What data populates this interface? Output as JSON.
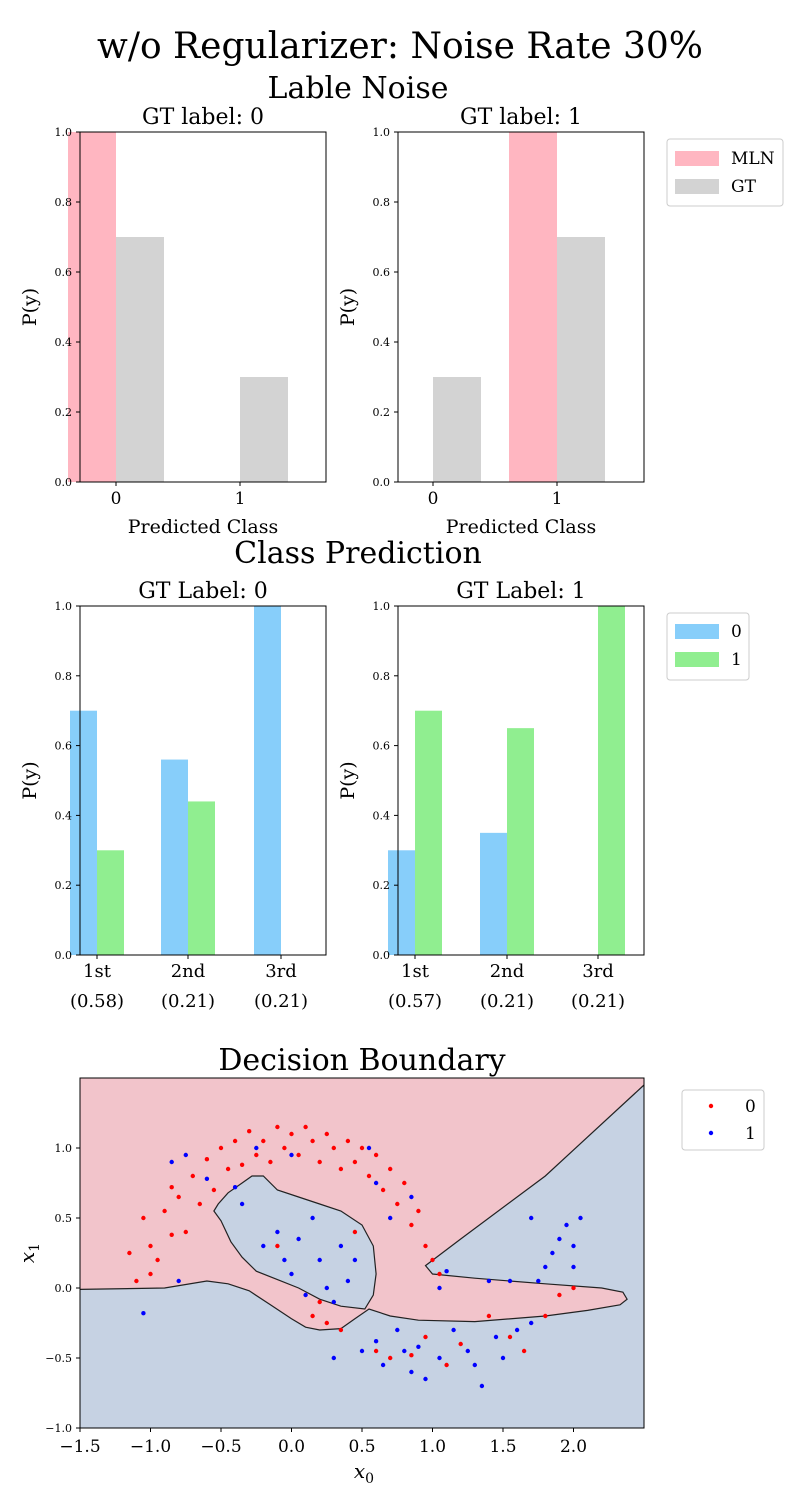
{
  "title": "w/o Regularizer: Noise Rate 30%",
  "sections": {
    "label_noise": "Lable Noise",
    "class_prediction": "Class Prediction",
    "decision_boundary": "Decision Boundary"
  },
  "colors": {
    "mln": "#ffb6c1",
    "gt": "#d3d3d3",
    "class0": "#87cefa",
    "class1": "#90ee90",
    "region0": "#f2c4cb",
    "region1": "#c6d2e3",
    "point0": "#ff0000",
    "point1": "#0000ff"
  },
  "chart_data": [
    {
      "type": "bar",
      "id": "noise0",
      "title": "GT label: 0",
      "xlabel": "Predicted Class",
      "ylabel": "P(y)",
      "categories": [
        "0",
        "1"
      ],
      "ylim": [
        0,
        1.0
      ],
      "yticks": [
        "0.0",
        "0.2",
        "0.4",
        "0.6",
        "0.8",
        "1.0"
      ],
      "series": [
        {
          "name": "MLN",
          "color": "mln",
          "values": [
            1.0,
            0.0
          ]
        },
        {
          "name": "GT",
          "color": "gt",
          "values": [
            0.7,
            0.3
          ]
        }
      ]
    },
    {
      "type": "bar",
      "id": "noise1",
      "title": "GT label: 1",
      "xlabel": "Predicted Class",
      "ylabel": "P(y)",
      "categories": [
        "0",
        "1"
      ],
      "ylim": [
        0,
        1.0
      ],
      "yticks": [
        "0.0",
        "0.2",
        "0.4",
        "0.6",
        "0.8",
        "1.0"
      ],
      "series": [
        {
          "name": "MLN",
          "color": "mln",
          "values": [
            0.0,
            1.0
          ]
        },
        {
          "name": "GT",
          "color": "gt",
          "values": [
            0.3,
            0.7
          ]
        }
      ]
    },
    {
      "type": "bar",
      "id": "pred0",
      "title": "GT Label: 0",
      "ylabel": "P(y)",
      "categories": [
        "1st",
        "2nd",
        "3rd"
      ],
      "category_weights": [
        "(0.58)",
        "(0.21)",
        "(0.21)"
      ],
      "ylim": [
        0,
        1.0
      ],
      "yticks": [
        "0.0",
        "0.2",
        "0.4",
        "0.6",
        "0.8",
        "1.0"
      ],
      "series": [
        {
          "name": "0",
          "color": "class0",
          "values": [
            0.7,
            0.56,
            1.0
          ]
        },
        {
          "name": "1",
          "color": "class1",
          "values": [
            0.3,
            0.44,
            0.0
          ]
        }
      ]
    },
    {
      "type": "bar",
      "id": "pred1",
      "title": "GT Label: 1",
      "ylabel": "P(y)",
      "categories": [
        "1st",
        "2nd",
        "3rd"
      ],
      "category_weights": [
        "(0.57)",
        "(0.21)",
        "(0.21)"
      ],
      "ylim": [
        0,
        1.0
      ],
      "yticks": [
        "0.0",
        "0.2",
        "0.4",
        "0.6",
        "0.8",
        "1.0"
      ],
      "series": [
        {
          "name": "0",
          "color": "class0",
          "values": [
            0.3,
            0.35,
            0.0
          ]
        },
        {
          "name": "1",
          "color": "class1",
          "values": [
            0.7,
            0.65,
            1.0
          ]
        }
      ]
    },
    {
      "type": "scatter",
      "id": "boundary",
      "title": "Decision Boundary",
      "xlabel": "x0",
      "ylabel": "x1",
      "xlim": [
        -1.5,
        2.5
      ],
      "ylim": [
        -1.0,
        1.5
      ],
      "xticks": [
        -1.5,
        -1.0,
        -0.5,
        0.0,
        0.5,
        1.0,
        1.5,
        2.0
      ],
      "xtick_labels": [
        "−1.5",
        "−1.0",
        "−0.5",
        "0.0",
        "0.5",
        "1.0",
        "1.5",
        "2.0"
      ],
      "yticks": [
        -1.0,
        -0.5,
        0.0,
        0.5,
        1.0
      ],
      "ytick_labels": [
        "−1.0",
        "−0.5",
        "0.0",
        "0.5",
        "1.0"
      ],
      "legend": [
        "0",
        "1"
      ],
      "boundary_outer": [
        [
          -1.5,
          -0.01
        ],
        [
          -0.9,
          0.0
        ],
        [
          -0.6,
          0.05
        ],
        [
          -0.45,
          0.03
        ],
        [
          -0.3,
          -0.02
        ],
        [
          -0.15,
          -0.12
        ],
        [
          0.0,
          -0.22
        ],
        [
          0.1,
          -0.28
        ],
        [
          0.2,
          -0.3
        ],
        [
          0.35,
          -0.29
        ],
        [
          0.45,
          -0.22
        ],
        [
          0.55,
          -0.15
        ],
        [
          0.7,
          -0.2
        ],
        [
          0.9,
          -0.23
        ],
        [
          1.3,
          -0.24
        ],
        [
          1.8,
          -0.2
        ],
        [
          2.1,
          -0.16
        ],
        [
          2.33,
          -0.12
        ],
        [
          2.38,
          -0.08
        ],
        [
          2.35,
          -0.03
        ],
        [
          2.2,
          0.0
        ],
        [
          1.8,
          0.03
        ],
        [
          1.3,
          0.07
        ],
        [
          1.0,
          0.1
        ],
        [
          0.95,
          0.16
        ],
        [
          1.2,
          0.35
        ],
        [
          1.8,
          0.8
        ],
        [
          2.5,
          1.45
        ]
      ],
      "boundary_inner": [
        [
          -0.55,
          0.55
        ],
        [
          -0.5,
          0.48
        ],
        [
          -0.43,
          0.33
        ],
        [
          -0.35,
          0.22
        ],
        [
          -0.25,
          0.12
        ],
        [
          -0.1,
          0.06
        ],
        [
          0.05,
          0.0
        ],
        [
          0.2,
          -0.08
        ],
        [
          0.35,
          -0.13
        ],
        [
          0.52,
          -0.15
        ],
        [
          0.58,
          -0.05
        ],
        [
          0.6,
          0.1
        ],
        [
          0.58,
          0.3
        ],
        [
          0.5,
          0.45
        ],
        [
          0.35,
          0.55
        ],
        [
          0.2,
          0.6
        ],
        [
          0.05,
          0.65
        ],
        [
          -0.1,
          0.7
        ],
        [
          -0.2,
          0.8
        ],
        [
          -0.28,
          0.8
        ],
        [
          -0.35,
          0.75
        ],
        [
          -0.45,
          0.68
        ],
        [
          -0.52,
          0.6
        ],
        [
          -0.55,
          0.55
        ]
      ],
      "series": [
        {
          "name": "0",
          "color": "point0",
          "points": [
            [
              -1.15,
              0.25
            ],
            [
              -1.1,
              0.05
            ],
            [
              -1.05,
              0.5
            ],
            [
              -1.0,
              0.3
            ],
            [
              -0.95,
              0.2
            ],
            [
              -0.9,
              0.55
            ],
            [
              -0.85,
              0.38
            ],
            [
              -0.8,
              0.65
            ],
            [
              -0.75,
              0.4
            ],
            [
              -0.7,
              0.8
            ],
            [
              -0.65,
              0.6
            ],
            [
              -0.6,
              0.92
            ],
            [
              -0.55,
              0.7
            ],
            [
              -0.5,
              1.0
            ],
            [
              -0.45,
              0.85
            ],
            [
              -0.4,
              1.05
            ],
            [
              -0.35,
              0.88
            ],
            [
              -0.3,
              1.12
            ],
            [
              -0.25,
              0.95
            ],
            [
              -0.2,
              1.05
            ],
            [
              -0.15,
              0.9
            ],
            [
              -0.1,
              1.15
            ],
            [
              -0.05,
              1.0
            ],
            [
              0.0,
              1.1
            ],
            [
              0.05,
              0.95
            ],
            [
              0.1,
              1.15
            ],
            [
              0.15,
              1.05
            ],
            [
              0.2,
              0.9
            ],
            [
              0.25,
              1.1
            ],
            [
              0.3,
              1.0
            ],
            [
              0.35,
              0.85
            ],
            [
              0.4,
              1.05
            ],
            [
              0.45,
              0.9
            ],
            [
              0.5,
              1.0
            ],
            [
              0.55,
              0.8
            ],
            [
              0.6,
              0.95
            ],
            [
              0.65,
              0.7
            ],
            [
              0.7,
              0.85
            ],
            [
              0.75,
              0.6
            ],
            [
              0.8,
              0.75
            ],
            [
              0.85,
              0.45
            ],
            [
              0.9,
              0.55
            ],
            [
              0.95,
              0.3
            ],
            [
              1.0,
              0.2
            ],
            [
              1.05,
              0.1
            ],
            [
              -1.0,
              0.1
            ],
            [
              -0.85,
              0.72
            ],
            [
              0.2,
              -0.1
            ],
            [
              0.25,
              -0.25
            ],
            [
              0.35,
              -0.3
            ],
            [
              0.6,
              -0.45
            ],
            [
              0.7,
              -0.5
            ],
            [
              0.85,
              -0.48
            ],
            [
              0.95,
              -0.35
            ],
            [
              1.1,
              -0.55
            ],
            [
              1.2,
              -0.4
            ],
            [
              1.4,
              -0.2
            ],
            [
              1.55,
              -0.35
            ],
            [
              1.65,
              -0.45
            ],
            [
              1.8,
              -0.2
            ],
            [
              1.9,
              -0.05
            ],
            [
              2.0,
              0.0
            ],
            [
              0.15,
              -0.2
            ],
            [
              -0.1,
              0.3
            ],
            [
              0.45,
              0.4
            ]
          ]
        },
        {
          "name": "1",
          "color": "point1",
          "points": [
            [
              -1.05,
              -0.18
            ],
            [
              -0.8,
              0.05
            ],
            [
              -0.85,
              0.9
            ],
            [
              -0.75,
              0.95
            ],
            [
              -0.4,
              0.72
            ],
            [
              -0.35,
              0.6
            ],
            [
              -0.2,
              0.3
            ],
            [
              -0.1,
              0.4
            ],
            [
              -0.05,
              0.2
            ],
            [
              0.0,
              0.1
            ],
            [
              0.05,
              0.35
            ],
            [
              0.1,
              -0.05
            ],
            [
              0.15,
              0.5
            ],
            [
              0.2,
              0.2
            ],
            [
              0.25,
              0.0
            ],
            [
              0.3,
              -0.1
            ],
            [
              0.35,
              0.3
            ],
            [
              0.4,
              0.05
            ],
            [
              0.45,
              0.2
            ],
            [
              0.3,
              -0.5
            ],
            [
              0.5,
              -0.45
            ],
            [
              0.6,
              -0.38
            ],
            [
              0.65,
              -0.55
            ],
            [
              0.75,
              -0.3
            ],
            [
              0.8,
              -0.45
            ],
            [
              0.85,
              -0.6
            ],
            [
              0.9,
              -0.42
            ],
            [
              0.95,
              -0.65
            ],
            [
              1.05,
              -0.5
            ],
            [
              1.15,
              -0.3
            ],
            [
              1.25,
              -0.45
            ],
            [
              1.3,
              -0.55
            ],
            [
              1.35,
              -0.7
            ],
            [
              1.45,
              -0.35
            ],
            [
              1.5,
              -0.5
            ],
            [
              1.6,
              -0.3
            ],
            [
              1.7,
              -0.25
            ],
            [
              1.75,
              0.05
            ],
            [
              1.8,
              0.15
            ],
            [
              1.85,
              0.25
            ],
            [
              1.9,
              0.35
            ],
            [
              1.95,
              0.45
            ],
            [
              2.0,
              0.3
            ],
            [
              2.05,
              0.5
            ],
            [
              2.0,
              0.15
            ],
            [
              1.7,
              0.5
            ],
            [
              1.55,
              0.05
            ],
            [
              1.4,
              0.05
            ],
            [
              1.1,
              0.12
            ],
            [
              0.85,
              0.65
            ],
            [
              1.05,
              0.0
            ],
            [
              0.6,
              0.75
            ],
            [
              0.7,
              0.5
            ],
            [
              0.55,
              1.0
            ],
            [
              -0.6,
              0.78
            ],
            [
              0.0,
              0.95
            ],
            [
              -0.25,
              1.0
            ]
          ]
        }
      ]
    }
  ]
}
